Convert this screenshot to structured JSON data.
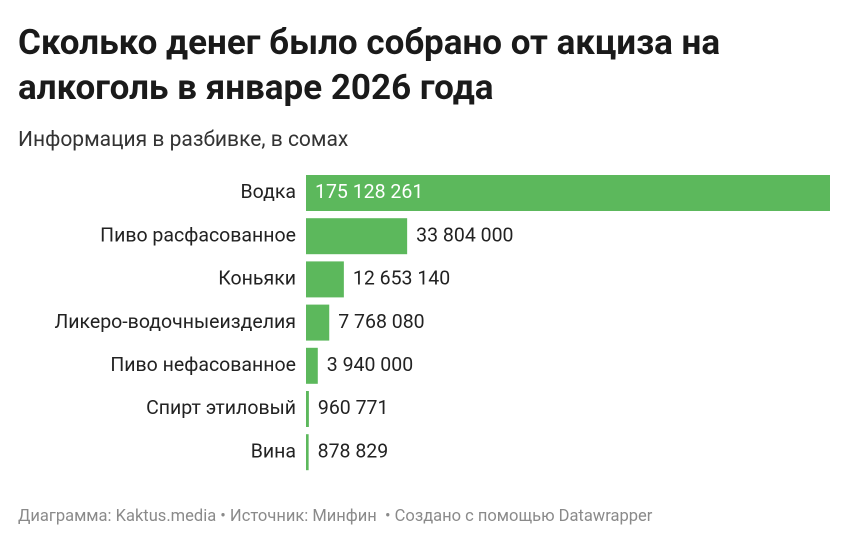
{
  "chart_data": {
    "type": "bar",
    "orientation": "horizontal",
    "title": "Сколько денег было собрано от акциза на алкоголь в январе 2026 года",
    "subtitle": "Информация в разбивке, в сомах",
    "categories": [
      "Водка",
      "Пиво расфасованное",
      "Коньяки",
      "Ликеро-водочныеизделия",
      "Пиво нефасованное",
      "Спирт этиловый",
      "Вина"
    ],
    "values": [
      175128261,
      33804000,
      12653140,
      7768080,
      3940000,
      960771,
      878829
    ],
    "value_labels": [
      "175 128 261",
      "33 804 000",
      "12 653 140",
      "7 768 080",
      "3 940 000",
      "960 771",
      "878 829"
    ],
    "color": "#5cb85c",
    "footer": "Диаграмма: Kaktus.media • Источник: Минфин  • Создано с помощью Datawrapper"
  }
}
